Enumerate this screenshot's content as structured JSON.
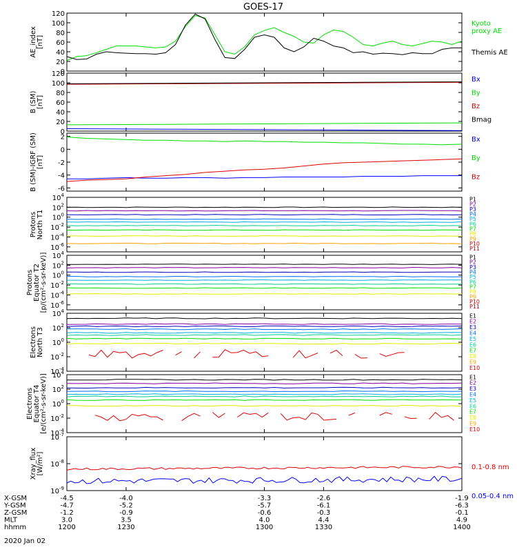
{
  "title": "GOES-17",
  "date_label": "2020 Jan 02",
  "colors": {
    "black": "#000000",
    "green": "#00e000",
    "blue": "#0000ff",
    "red": "#e00000",
    "channel_palette": [
      "#000000",
      "#8000a0",
      "#0000c0",
      "#0070ff",
      "#00b0e0",
      "#00d090",
      "#00e000",
      "#e8e800",
      "#ffa000",
      "#e00000",
      "#c00000"
    ]
  },
  "x_axis": {
    "range": [
      1200,
      1400
    ],
    "ticks": [
      1200,
      1230,
      1300,
      1330,
      1400
    ],
    "rows": [
      {
        "label": "X-GSM",
        "values": [
          "-4.5",
          "-4.0",
          "-3.3",
          "-2.6",
          "-1.9"
        ]
      },
      {
        "label": "Y-GSM",
        "values": [
          "-4.7",
          "-5.2",
          "-5.7",
          "-6.1",
          "-6.3"
        ]
      },
      {
        "label": "Z-GSM",
        "values": [
          "-1.2",
          "-0.9",
          "-0.6",
          "-0.3",
          "-0.1"
        ]
      },
      {
        "label": "MLT",
        "values": [
          "3.0",
          "3.5",
          "4.0",
          "4.4",
          "4.9"
        ]
      },
      {
        "label": "hhmm",
        "values": [
          "1200",
          "1230",
          "1300",
          "1330",
          "1400"
        ]
      }
    ]
  },
  "chart_data": [
    {
      "type": "line",
      "ylabel": "AE_index\n[nT]",
      "ylim": [
        0,
        120
      ],
      "yticks": [
        "0",
        "20",
        "40",
        "60",
        "80",
        "100",
        "120"
      ],
      "x": [
        1200,
        1205,
        1210,
        1215,
        1220,
        1225,
        1230,
        1235,
        1240,
        1245,
        1250,
        1255,
        1260,
        1265,
        1270,
        1275,
        1280,
        1285,
        1290,
        1295,
        1300,
        1305,
        1310,
        1315,
        1320,
        1325,
        1330,
        1335,
        1340,
        1345,
        1350,
        1355,
        1360,
        1365,
        1370,
        1375,
        1380,
        1385,
        1390,
        1395,
        1400
      ],
      "series": [
        {
          "name": "Kyoto proxy AE",
          "label_lines": [
            "Kyoto",
            "proxy AE"
          ],
          "color": "green",
          "values": [
            22,
            30,
            32,
            38,
            45,
            52,
            52,
            52,
            50,
            48,
            50,
            62,
            92,
            115,
            110,
            75,
            40,
            35,
            50,
            75,
            84,
            90,
            80,
            72,
            60,
            58,
            75,
            85,
            82,
            70,
            55,
            52,
            58,
            62,
            55,
            52,
            57,
            62,
            60,
            55,
            62
          ]
        },
        {
          "name": "Themis AE",
          "label_lines": [
            "Themis AE"
          ],
          "color": "black",
          "values": [
            30,
            24,
            25,
            35,
            40,
            38,
            37,
            36,
            36,
            35,
            38,
            55,
            95,
            118,
            108,
            65,
            28,
            26,
            45,
            70,
            75,
            70,
            48,
            40,
            50,
            68,
            62,
            52,
            48,
            38,
            40,
            35,
            37,
            36,
            34,
            38,
            36,
            36,
            45,
            48,
            48
          ]
        }
      ]
    },
    {
      "type": "line",
      "ylabel": "B (SM)\n[nT]",
      "ylim": [
        0,
        120
      ],
      "yticks": [
        "0",
        "20",
        "40",
        "60",
        "80",
        "100",
        "120"
      ],
      "x": [
        1200,
        1250,
        1300,
        1350,
        1400
      ],
      "series": [
        {
          "name": "Bx",
          "color": "blue",
          "values": [
            5,
            4,
            3,
            2,
            1
          ]
        },
        {
          "name": "By",
          "color": "green",
          "values": [
            13,
            14,
            15,
            16,
            17
          ]
        },
        {
          "name": "Bz",
          "color": "red",
          "values": [
            97,
            98,
            99,
            100,
            101
          ]
        },
        {
          "name": "Bmag",
          "color": "black",
          "values": [
            98,
            99,
            100,
            101,
            102
          ]
        }
      ]
    },
    {
      "type": "line",
      "ylabel": "B (SM)-IGRF (SM)\n[nT]",
      "ylim": [
        -6.5,
        2.5
      ],
      "yticks": [
        "-6",
        "-4",
        "-2",
        "0",
        "2"
      ],
      "x": [
        1200,
        1210,
        1220,
        1230,
        1240,
        1250,
        1260,
        1270,
        1280,
        1290,
        1300,
        1310,
        1320,
        1330,
        1340,
        1350,
        1360,
        1370,
        1380,
        1390,
        1400
      ],
      "series": [
        {
          "name": "Bx",
          "color": "blue",
          "values": [
            -4.6,
            -4.6,
            -4.5,
            -4.4,
            -4.5,
            -4.5,
            -4.4,
            -4.4,
            -4.5,
            -4.4,
            -4.4,
            -4.3,
            -4.3,
            -4.3,
            -4.3,
            -4.2,
            -4.2,
            -4.2,
            -4.1,
            -4.1,
            -4.1
          ]
        },
        {
          "name": "By",
          "color": "green",
          "values": [
            1.9,
            1.7,
            1.6,
            1.5,
            1.4,
            1.4,
            1.3,
            1.3,
            1.2,
            1.3,
            1.2,
            1.2,
            1.1,
            1.1,
            1.0,
            1.0,
            0.9,
            0.8,
            0.8,
            0.7,
            0.8
          ]
        },
        {
          "name": "Bz",
          "color": "red",
          "values": [
            -5.0,
            -4.8,
            -4.7,
            -4.6,
            -4.3,
            -4.1,
            -3.9,
            -3.6,
            -3.4,
            -3.2,
            -3.1,
            -2.9,
            -2.6,
            -2.3,
            -2.1,
            -2.0,
            -1.9,
            -1.8,
            -1.7,
            -1.6,
            -1.5
          ]
        }
      ]
    },
    {
      "type": "line",
      "log": true,
      "ylabel": "Protons\nNorth T1",
      "ylim_exp": [
        -7,
        4
      ],
      "yticks": [
        {
          "b": "10",
          "e": "4"
        },
        {
          "b": "10",
          "e": "2"
        },
        {
          "b": "10",
          "e": "0"
        },
        {
          "b": "10",
          "e": "-2"
        },
        {
          "b": "10",
          "e": "-4"
        },
        {
          "b": "10",
          "e": "-6"
        }
      ],
      "channels": [
        "P1",
        "P2",
        "P3",
        "P4",
        "P5",
        "P6",
        "P7",
        "P8",
        "P9",
        "P10",
        "P11"
      ],
      "levels_exp": [
        2.0,
        1.3,
        0.5,
        -0.4,
        -1.0,
        -1.7,
        -2.6,
        -3.8,
        -5.3
      ]
    },
    {
      "type": "line",
      "log": true,
      "ylabel": "Protons\nEquator T2\n[p/(cm²-s-sr-keV)]",
      "ylim_exp": [
        -7,
        4
      ],
      "yticks": [
        {
          "b": "10",
          "e": "4"
        },
        {
          "b": "10",
          "e": "2"
        },
        {
          "b": "10",
          "e": "0"
        },
        {
          "b": "10",
          "e": "-2"
        },
        {
          "b": "10",
          "e": "-4"
        },
        {
          "b": "10",
          "e": "-6"
        }
      ],
      "channels": [
        "P1",
        "P2",
        "P3",
        "P4",
        "P5",
        "P6",
        "P7",
        "P8",
        "P9",
        "P10",
        "P11"
      ],
      "levels_exp": [
        2.2,
        1.5,
        0.6,
        -0.3,
        -1.0,
        -1.8,
        -2.6,
        -3.8
      ]
    },
    {
      "type": "line",
      "log": true,
      "ylabel": "Electrons\nNorth T3",
      "ylim_exp": [
        -4,
        4
      ],
      "yticks": [
        {
          "b": "10",
          "e": "4"
        },
        {
          "b": "10",
          "e": "2"
        },
        {
          "b": "10",
          "e": "0"
        },
        {
          "b": "10",
          "e": "-2"
        },
        {
          "b": "10",
          "e": "-4"
        }
      ],
      "channels": [
        "E1",
        "E2",
        "E3",
        "E4",
        "E5",
        "E6",
        "E7",
        "E8",
        "E9",
        "E10"
      ],
      "levels_exp": [
        3.3,
        2.5,
        2.2,
        1.8,
        1.3,
        1.0,
        0.5,
        -0.2
      ],
      "noisy_exp": -1.6
    },
    {
      "type": "line",
      "log": true,
      "ylabel": "Electrons\nEquator T4\n[e/(cm²-s-sr-keV)]",
      "ylim_exp": [
        -4,
        4
      ],
      "yticks": [
        {
          "b": "10",
          "e": "4"
        },
        {
          "b": "10",
          "e": "2"
        },
        {
          "b": "10",
          "e": "0"
        },
        {
          "b": "10",
          "e": "-2"
        },
        {
          "b": "10",
          "e": "-4"
        }
      ],
      "channels": [
        "E1",
        "E2",
        "E3",
        "E4",
        "E5",
        "E6",
        "E7",
        "E8",
        "E9",
        "E10"
      ],
      "levels_exp": [
        3.3,
        2.8,
        2.2,
        1.7,
        1.3,
        1.0,
        0.5,
        -0.3
      ],
      "noisy_exp": -1.8
    },
    {
      "type": "line",
      "log": true,
      "ylabel": "Xray_flux\n[W/m²]",
      "ylim_exp": [
        -9,
        -7
      ],
      "yticks": [
        {
          "b": "10",
          "e": "-7"
        },
        {
          "b": "10",
          "e": "-8"
        },
        {
          "b": "10",
          "e": "-9"
        }
      ],
      "series": [
        {
          "name": "0.1-0.8 nm",
          "color": "red",
          "base_exp": -8.2
        },
        {
          "name": "0.05-0.4 nm",
          "color": "blue",
          "base_exp": -8.65
        }
      ]
    }
  ]
}
